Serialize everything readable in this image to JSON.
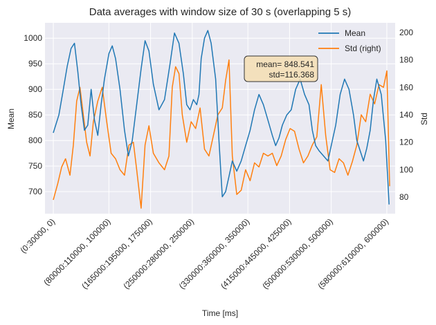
{
  "chart_data": {
    "type": "line",
    "title": "Data averages with window size of 30 s (overlapping 5 s)",
    "xlabel": "Time [ms]",
    "ylabel": "Mean",
    "ylabel_right": "Std",
    "x_tick_labels": [
      "(0:30000, 0)",
      "(80000:110000, 100000)",
      "(165000:195000, 175000)",
      "(250000:280000, 250000)",
      "(330000:360000, 350000)",
      "(415000:445000, 425000)",
      "(500000:530000, 500000)",
      "(580000:610000, 600000)"
    ],
    "x_tick_values": [
      0,
      100000,
      175000,
      250000,
      350000,
      425000,
      500000,
      600000
    ],
    "xlim": [
      -15000,
      615000
    ],
    "ylim_left": [
      657,
      1030
    ],
    "ylim_right": [
      68,
      207
    ],
    "y_ticks_left": [
      700,
      750,
      800,
      850,
      900,
      950,
      1000
    ],
    "y_ticks_right": [
      80,
      100,
      120,
      140,
      160,
      180,
      200
    ],
    "grid": true,
    "legend_position": "top-right",
    "annotation": {
      "line1": "mean= 848.541",
      "line2": "std=116.368"
    },
    "series": [
      {
        "name": "Mean",
        "axis": "left",
        "color": "#1f77b4",
        "x": [
          0,
          10000,
          18000,
          25000,
          32000,
          38000,
          44000,
          50000,
          56000,
          62000,
          68000,
          74000,
          80000,
          86000,
          92000,
          100000,
          106000,
          112000,
          120000,
          128000,
          135000,
          142000,
          150000,
          158000,
          165000,
          172000,
          180000,
          190000,
          200000,
          210000,
          218000,
          226000,
          234000,
          240000,
          246000,
          252000,
          258000,
          262000,
          266000,
          272000,
          278000,
          284000,
          292000,
          298000,
          304000,
          310000,
          316000,
          322000,
          330000,
          338000,
          346000,
          354000,
          362000,
          370000,
          378000,
          386000,
          394000,
          400000,
          406000,
          412000,
          420000,
          428000,
          436000,
          444000,
          452000,
          460000,
          466000,
          472000,
          478000,
          486000,
          494000,
          500000,
          508000,
          516000,
          524000,
          532000,
          540000,
          546000,
          552000,
          558000,
          564000,
          570000,
          576000,
          582000,
          590000,
          598000,
          604000
        ],
        "values": [
          815,
          850,
          900,
          945,
          980,
          990,
          935,
          870,
          820,
          830,
          900,
          840,
          810,
          870,
          920,
          970,
          985,
          960,
          900,
          820,
          770,
          800,
          870,
          940,
          995,
          975,
          910,
          860,
          880,
          950,
          1010,
          990,
          930,
          870,
          860,
          880,
          870,
          890,
          960,
          1000,
          1015,
          990,
          920,
          800,
          690,
          700,
          730,
          760,
          740,
          760,
          790,
          820,
          860,
          890,
          870,
          840,
          810,
          790,
          805,
          830,
          850,
          860,
          900,
          920,
          890,
          870,
          820,
          790,
          780,
          770,
          760,
          790,
          830,
          890,
          920,
          900,
          850,
          800,
          780,
          760,
          785,
          820,
          880,
          920,
          890,
          800,
          675
        ]
      },
      {
        "name": "Std (right)",
        "axis": "right",
        "color": "#ff7f0e",
        "x": [
          0,
          8000,
          15000,
          22000,
          30000,
          36000,
          42000,
          48000,
          54000,
          60000,
          66000,
          72000,
          80000,
          88000,
          96000,
          104000,
          112000,
          120000,
          128000,
          136000,
          144000,
          150000,
          158000,
          165000,
          172000,
          180000,
          190000,
          200000,
          208000,
          214000,
          220000,
          226000,
          232000,
          240000,
          248000,
          256000,
          264000,
          272000,
          280000,
          288000,
          296000,
          304000,
          310000,
          316000,
          322000,
          330000,
          338000,
          346000,
          354000,
          362000,
          370000,
          378000,
          386000,
          394000,
          402000,
          410000,
          418000,
          426000,
          434000,
          442000,
          450000,
          458000,
          466000,
          474000,
          482000,
          490000,
          498000,
          506000,
          514000,
          522000,
          530000,
          538000,
          546000,
          554000,
          562000,
          570000,
          578000,
          586000,
          594000,
          600000,
          605000
        ],
        "values": [
          78,
          90,
          102,
          108,
          96,
          118,
          150,
          160,
          140,
          120,
          110,
          135,
          150,
          160,
          135,
          112,
          108,
          100,
          96,
          118,
          120,
          100,
          72,
          118,
          132,
          112,
          105,
          100,
          110,
          160,
          175,
          170,
          140,
          120,
          135,
          130,
          145,
          115,
          110,
          125,
          140,
          145,
          165,
          180,
          110,
          82,
          85,
          100,
          92,
          105,
          102,
          112,
          110,
          112,
          103,
          110,
          122,
          130,
          128,
          115,
          105,
          110,
          118,
          124,
          162,
          125,
          100,
          98,
          108,
          105,
          96,
          106,
          118,
          140,
          135,
          155,
          148,
          162,
          160,
          172,
          88
        ]
      }
    ]
  }
}
